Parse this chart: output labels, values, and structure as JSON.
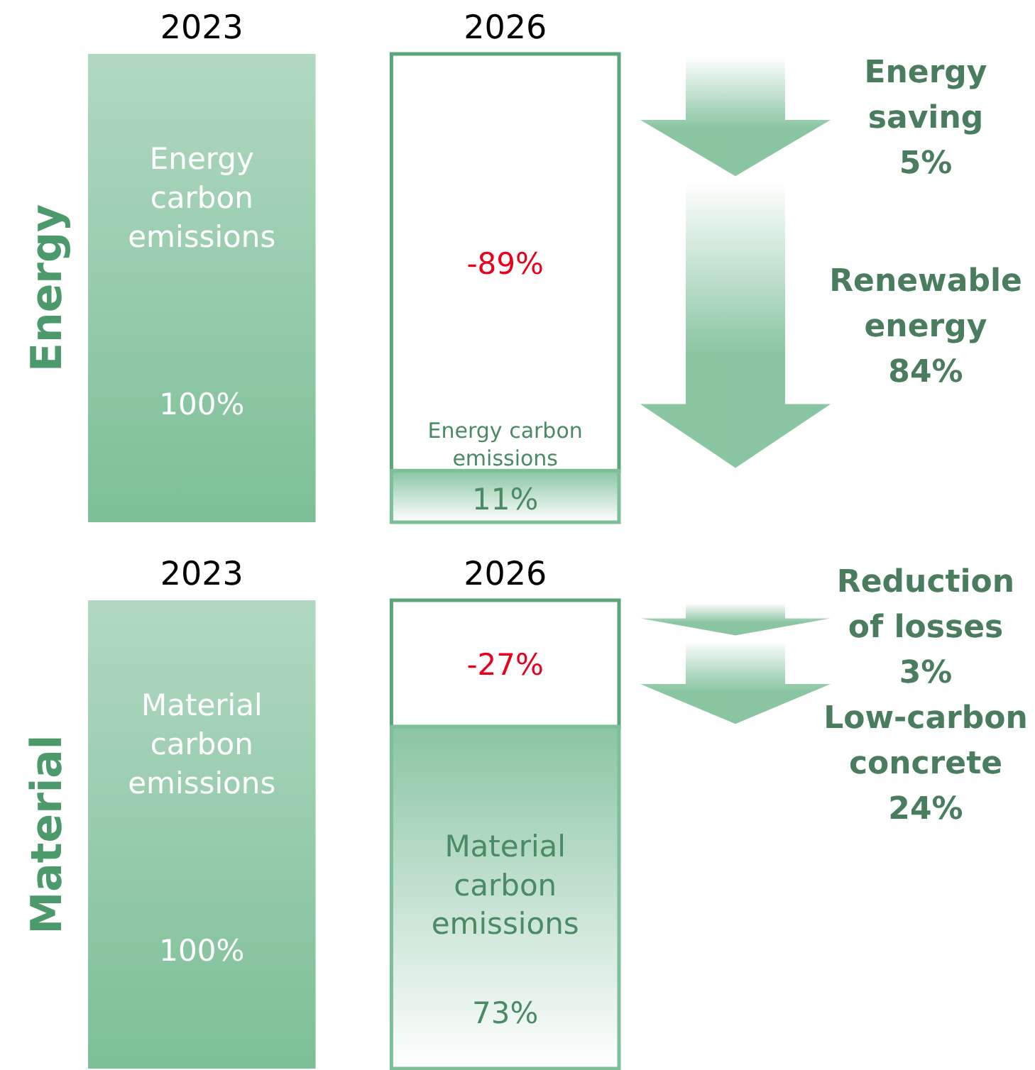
{
  "chart_data": [
    {
      "type": "bar",
      "ylabel": "Energy",
      "categories": [
        "2023",
        "2026"
      ],
      "ylim": [
        0,
        100
      ],
      "tick_labels": "x",
      "stacked": true,
      "series": [
        {
          "name": "Energy carbon emissions",
          "color": "#7dbf98",
          "values": [
            100,
            11
          ],
          "value_labels": [
            "100%",
            "11%"
          ]
        },
        {
          "color": "#5aa57a",
          "values": [
            null,
            89
          ]
        }
      ],
      "annotations": [
        "-89%",
        "Energy\nsaving\n5%",
        "Renewable\nenergy\n84%"
      ]
    },
    {
      "type": "bar",
      "ylabel": "Material",
      "categories": [
        "2023",
        "2026"
      ],
      "ylim": [
        0,
        100
      ],
      "tick_labels": "x",
      "stacked": true,
      "series": [
        {
          "name": "Material carbon emissions",
          "color": "#7dbf98",
          "values": [
            100,
            73
          ],
          "value_labels": [
            "100%",
            "73%"
          ]
        },
        {
          "color": "#5aa57a",
          "values": [
            null,
            27
          ]
        }
      ],
      "annotations": [
        "-27%",
        "Reduction\nof losses\n3%",
        "Low-carbon\nconcrete\n24%"
      ]
    }
  ]
}
